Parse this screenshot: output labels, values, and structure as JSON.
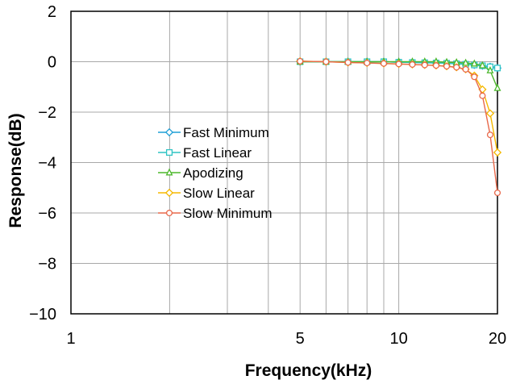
{
  "chart_data": {
    "type": "line",
    "title": "",
    "xlabel": "Frequency(kHz)",
    "ylabel": "Response(dB)",
    "x_scale": "log",
    "xlim": [
      1,
      20
    ],
    "ylim": [
      -10,
      2
    ],
    "x_ticks": [
      1,
      5,
      10,
      20
    ],
    "x_tick_labels": [
      "1",
      "5",
      "10",
      "20"
    ],
    "x_minor_gridlines": [
      2,
      3,
      4,
      5,
      6,
      7,
      8,
      9,
      10,
      20
    ],
    "y_ticks": [
      2,
      0,
      -2,
      -4,
      -6,
      -8,
      -10
    ],
    "y_tick_labels": [
      "2",
      "0",
      "−2",
      "−4",
      "−6",
      "−8",
      "−10"
    ],
    "grid": true,
    "legend_position": "center-left",
    "x": [
      5,
      6,
      7,
      8,
      9,
      10,
      11,
      12,
      13,
      14,
      15,
      16,
      17,
      18,
      19,
      20
    ],
    "series": [
      {
        "name": "Fast Minimum",
        "color": "#1f9fd6",
        "marker": "diamond",
        "values": [
          0,
          0,
          0,
          0,
          0,
          -0.02,
          -0.03,
          -0.04,
          -0.05,
          -0.06,
          -0.08,
          -0.1,
          -0.13,
          -0.16,
          -0.2,
          -0.25
        ]
      },
      {
        "name": "Fast Linear",
        "color": "#2ec4c4",
        "marker": "square",
        "values": [
          0,
          0,
          0,
          0,
          0,
          -0.02,
          -0.03,
          -0.04,
          -0.05,
          -0.06,
          -0.08,
          -0.1,
          -0.13,
          -0.16,
          -0.2,
          -0.25
        ]
      },
      {
        "name": "Apodizing",
        "color": "#4db82c",
        "marker": "triangle",
        "values": [
          0,
          0,
          0,
          0,
          0,
          0,
          0,
          0,
          0,
          -0.02,
          -0.03,
          -0.05,
          -0.08,
          -0.15,
          -0.35,
          -1.05
        ]
      },
      {
        "name": "Slow Linear",
        "color": "#f5b800",
        "marker": "diamond",
        "values": [
          0.02,
          0,
          -0.03,
          -0.05,
          -0.07,
          -0.09,
          -0.11,
          -0.13,
          -0.15,
          -0.18,
          -0.22,
          -0.3,
          -0.55,
          -1.1,
          -2.05,
          -3.6
        ]
      },
      {
        "name": "Slow Minimum",
        "color": "#e8684a",
        "marker": "circle",
        "values": [
          0.02,
          0,
          -0.03,
          -0.05,
          -0.07,
          -0.09,
          -0.11,
          -0.13,
          -0.15,
          -0.18,
          -0.22,
          -0.3,
          -0.6,
          -1.35,
          -2.9,
          -5.2
        ]
      }
    ]
  }
}
